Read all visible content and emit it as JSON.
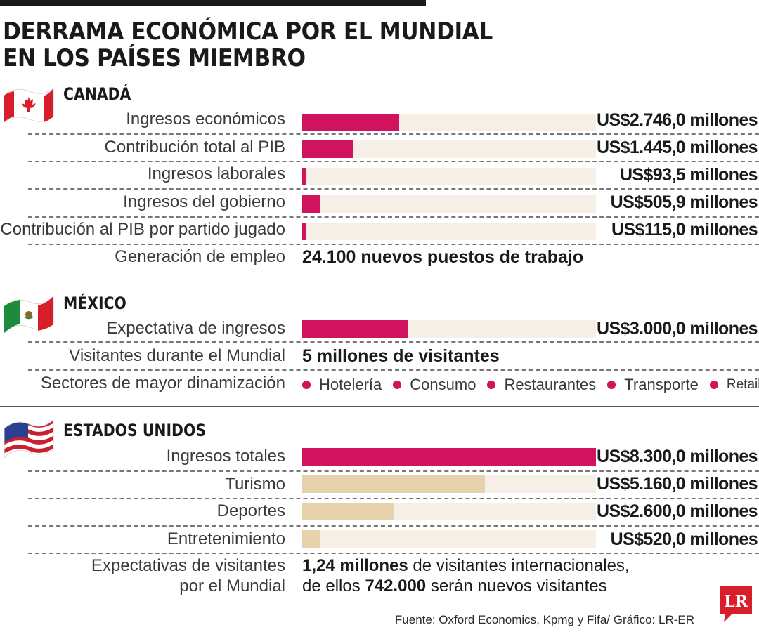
{
  "title": "DERRAMA ECONÓMICA POR EL MUNDIAL EN LOS PAÍSES MIEMBRO",
  "colors": {
    "accent": "#d1125f",
    "tan": "#e6d3ad",
    "track": "#f6efe5"
  },
  "sections": {
    "canada": {
      "name": "CANADÁ",
      "rows": [
        {
          "label": "Ingresos económicos",
          "value_text": "US$2.746,0 millones"
        },
        {
          "label": "Contribución total al PIB",
          "value_text": "US$1.445,0 millones"
        },
        {
          "label": "Ingresos laborales",
          "value_text": "US$93,5 millones"
        },
        {
          "label": "Ingresos del gobierno",
          "value_text": "US$505,9 millones"
        },
        {
          "label": "Contribución al PIB por partido jugado",
          "value_text": "US$115,0 millones"
        }
      ],
      "employment": {
        "label": "Generación de empleo",
        "text": "24.100 nuevos puestos de trabajo"
      }
    },
    "mexico": {
      "name": "MÉXICO",
      "rows": [
        {
          "label": "Expectativa de ingresos",
          "value_text": "US$3.000,0 millones"
        }
      ],
      "visitors": {
        "label": "Visitantes durante el Mundial",
        "text": "5 millones de visitantes"
      },
      "sectors": {
        "label": "Sectores de mayor dinamización",
        "items": [
          "Hotelería",
          "Consumo",
          "Restaurantes",
          "Transporte",
          "Retail"
        ]
      }
    },
    "usa": {
      "name": "ESTADOS UNIDOS",
      "rows": [
        {
          "label": "Ingresos totales",
          "value_text": "US$8.300,0 millones"
        },
        {
          "label": "Turismo",
          "value_text": "US$5.160,0 millones"
        },
        {
          "label": "Deportes",
          "value_text": "US$2.600,0 millones"
        },
        {
          "label": "Entretenimiento",
          "value_text": "US$520,0 millones"
        }
      ],
      "expectations": {
        "label_line1": "Expectativas de visitantes",
        "label_line2": "por el Mundial",
        "line1_bold": "1,24 millones",
        "line1_rest": " de visitantes internacionales,",
        "line2_pre": "de ellos ",
        "line2_bold": "742.000",
        "line2_rest": " serán nuevos visitantes"
      }
    }
  },
  "source": "Fuente: Oxford Economics, Kpmg y Fifa/ Gráfico: LR-ER",
  "logo_text": "LR",
  "chart_data": {
    "type": "bar",
    "unit": "US$ millones",
    "xlim": [
      0,
      8300
    ],
    "series": [
      {
        "values": [
          2746.0,
          1445.0,
          93.5,
          505.9,
          115.0,
          3000.0,
          8300.0,
          5160.0,
          2600.0,
          520.0
        ]
      }
    ],
    "categories": [
      "Ingresos económicos",
      "Contribución total al PIB",
      "Ingresos laborales",
      "Ingresos del gobierno",
      "Contribución al PIB por partido jugado",
      "Expectativa de ingresos",
      "Ingresos totales",
      "Turismo",
      "Deportes",
      "Entretenimiento"
    ],
    "bar_colors": [
      "#d1125f",
      "#d1125f",
      "#d1125f",
      "#d1125f",
      "#d1125f",
      "#d1125f",
      "#d1125f",
      "#e6d3ad",
      "#e6d3ad",
      "#e6d3ad"
    ]
  }
}
